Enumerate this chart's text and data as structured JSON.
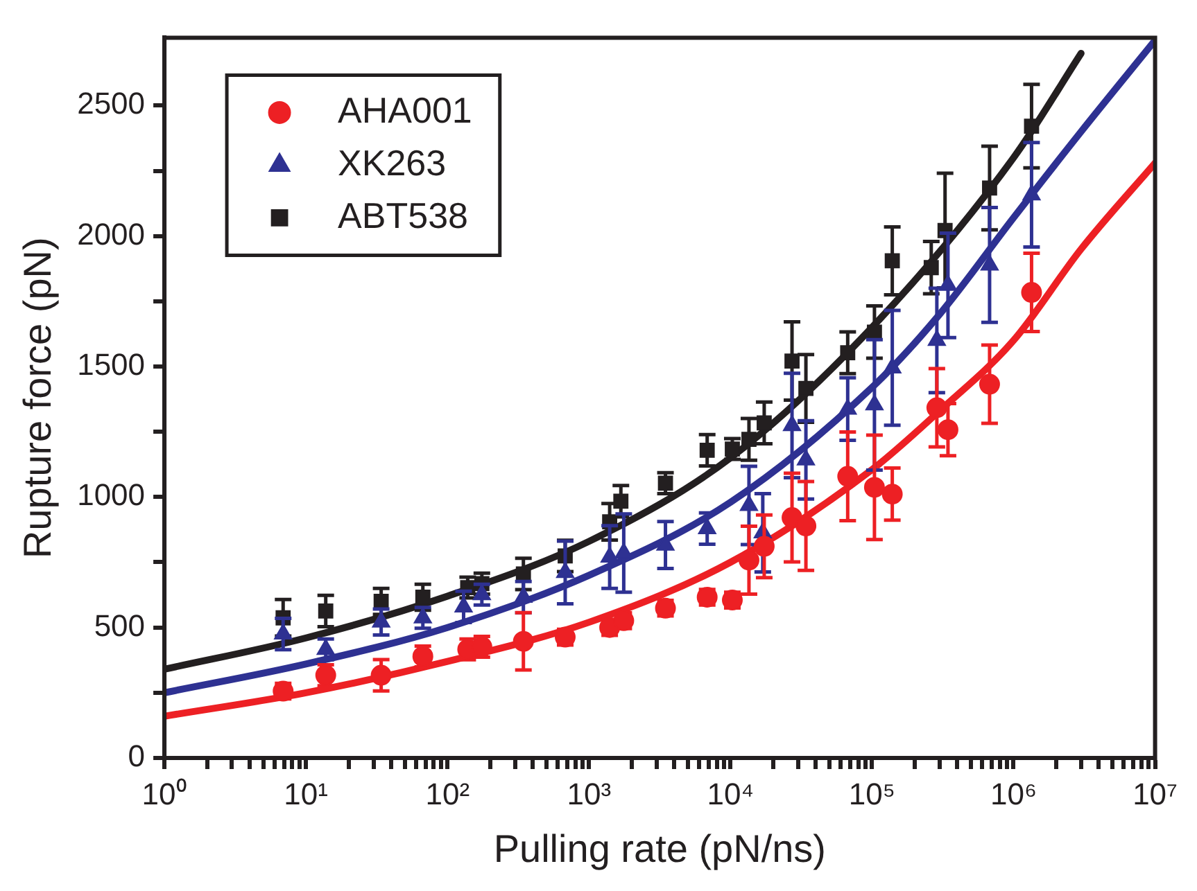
{
  "chart_data": {
    "type": "scatter",
    "xlabel": "Pulling rate (pN/ns)",
    "ylabel": "Rupture force (pN)",
    "log": "x",
    "grid": false,
    "legend": "top left",
    "xlim": [
      1,
      10000000
    ],
    "ylim": [
      0,
      2760
    ],
    "xticks": [
      {
        "value": 1,
        "label": "10⁰"
      },
      {
        "value": 2,
        "label": null
      },
      {
        "value": 3,
        "label": null
      },
      {
        "value": 4,
        "label": null
      },
      {
        "value": 5,
        "label": null
      },
      {
        "value": 6,
        "label": null
      },
      {
        "value": 7,
        "label": null
      },
      {
        "value": 8,
        "label": null
      },
      {
        "value": 9,
        "label": null
      },
      {
        "value": 10,
        "label": "10¹"
      },
      {
        "value": 20,
        "label": null
      },
      {
        "value": 30,
        "label": null
      },
      {
        "value": 40,
        "label": null
      },
      {
        "value": 50,
        "label": null
      },
      {
        "value": 60,
        "label": null
      },
      {
        "value": 70,
        "label": null
      },
      {
        "value": 80,
        "label": null
      },
      {
        "value": 90,
        "label": null
      },
      {
        "value": 100,
        "label": "10²"
      },
      {
        "value": 200,
        "label": null
      },
      {
        "value": 300,
        "label": null
      },
      {
        "value": 400,
        "label": null
      },
      {
        "value": 500,
        "label": null
      },
      {
        "value": 600,
        "label": null
      },
      {
        "value": 700,
        "label": null
      },
      {
        "value": 800,
        "label": null
      },
      {
        "value": 900,
        "label": null
      },
      {
        "value": 1000,
        "label": "10³"
      },
      {
        "value": 2000,
        "label": null
      },
      {
        "value": 3000,
        "label": null
      },
      {
        "value": 4000,
        "label": null
      },
      {
        "value": 5000,
        "label": null
      },
      {
        "value": 6000,
        "label": null
      },
      {
        "value": 7000,
        "label": null
      },
      {
        "value": 8000,
        "label": null
      },
      {
        "value": 9000,
        "label": null
      },
      {
        "value": 10000,
        "label": "10⁴"
      },
      {
        "value": 20000,
        "label": null
      },
      {
        "value": 30000,
        "label": null
      },
      {
        "value": 40000,
        "label": null
      },
      {
        "value": 50000,
        "label": null
      },
      {
        "value": 60000,
        "label": null
      },
      {
        "value": 70000,
        "label": null
      },
      {
        "value": 80000,
        "label": null
      },
      {
        "value": 90000,
        "label": null
      },
      {
        "value": 100000,
        "label": "10⁵"
      },
      {
        "value": 200000,
        "label": null
      },
      {
        "value": 300000,
        "label": null
      },
      {
        "value": 400000,
        "label": null
      },
      {
        "value": 500000,
        "label": null
      },
      {
        "value": 600000,
        "label": null
      },
      {
        "value": 700000,
        "label": null
      },
      {
        "value": 800000,
        "label": null
      },
      {
        "value": 900000,
        "label": null
      },
      {
        "value": 1000000,
        "label": "10⁶"
      },
      {
        "value": 2000000,
        "label": null
      },
      {
        "value": 3000000,
        "label": null
      },
      {
        "value": 4000000,
        "label": null
      },
      {
        "value": 5000000,
        "label": null
      },
      {
        "value": 6000000,
        "label": null
      },
      {
        "value": 7000000,
        "label": null
      },
      {
        "value": 8000000,
        "label": null
      },
      {
        "value": 9000000,
        "label": null
      },
      {
        "value": 10000000,
        "label": "10⁷"
      }
    ],
    "yticks": [
      0,
      {
        "value": 250,
        "label": null
      },
      500,
      {
        "value": 750,
        "label": null
      },
      1000,
      {
        "value": 1250,
        "label": null
      },
      1500,
      {
        "value": 1750,
        "label": null
      },
      2000,
      {
        "value": 2250,
        "label": null
      },
      2500
    ],
    "series": [
      {
        "name": "AHA001",
        "type": "scatter",
        "marker": "circle",
        "color": "#ed2024",
        "x": [
          6.9,
          13.8,
          34,
          67,
          139,
          175,
          344,
          679,
          1400,
          1760,
          3470,
          6840,
          10300,
          13500,
          17300,
          27200,
          34100,
          67300,
          104000,
          139000,
          287000,
          344000,
          677000,
          1340000
        ],
        "values": [
          256,
          317,
          317,
          389,
          416,
          426,
          447,
          463,
          500,
          526,
          574,
          616,
          605,
          758,
          811,
          921,
          889,
          1079,
          1037,
          1011,
          1342,
          1258,
          1432,
          1784
        ],
        "errors": [
          30,
          40,
          60,
          40,
          40,
          40,
          110,
          30,
          30,
          30,
          30,
          30,
          30,
          130,
          120,
          170,
          170,
          170,
          200,
          100,
          150,
          100,
          150,
          150
        ]
      },
      {
        "name": "XK263",
        "type": "scatter",
        "marker": "triangle",
        "color": "#2e3192",
        "x": [
          6.9,
          13.8,
          34,
          67,
          130,
          175,
          344,
          679,
          1400,
          1760,
          3470,
          6840,
          13500,
          16900,
          27200,
          34100,
          67300,
          104000,
          139000,
          287000,
          344000,
          677000,
          1340000
        ],
        "values": [
          475,
          416,
          521,
          537,
          579,
          626,
          616,
          711,
          770,
          785,
          816,
          879,
          968,
          863,
          1274,
          1142,
          1337,
          1353,
          1495,
          1600,
          1811,
          1889,
          2158
        ],
        "errors": [
          60,
          40,
          50,
          40,
          60,
          40,
          60,
          120,
          120,
          150,
          90,
          60,
          150,
          150,
          200,
          150,
          120,
          250,
          220,
          200,
          200,
          220,
          200
        ]
      },
      {
        "name": "ABT538",
        "type": "scatter",
        "marker": "square",
        "color": "#231f20",
        "x": [
          6.9,
          13.8,
          34,
          67,
          139,
          175,
          344,
          679,
          1400,
          1680,
          3470,
          6840,
          10300,
          13500,
          17300,
          27200,
          34100,
          67300,
          104000,
          139000,
          262000,
          328000,
          677000,
          1340000
        ],
        "values": [
          537,
          563,
          600,
          616,
          653,
          668,
          705,
          774,
          905,
          984,
          1053,
          1179,
          1184,
          1221,
          1284,
          1521,
          1416,
          1553,
          1632,
          1905,
          1879,
          2021,
          2184,
          2421
        ],
        "errors": [
          70,
          60,
          50,
          50,
          40,
          40,
          60,
          60,
          70,
          60,
          40,
          60,
          40,
          80,
          80,
          150,
          130,
          80,
          100,
          130,
          100,
          220,
          160,
          160
        ]
      },
      {
        "type": "line",
        "marker": "none",
        "line_style": "solid",
        "color": "#ed2024",
        "x": [
          1,
          10,
          100,
          1000,
          10000,
          100000,
          300000,
          1000000,
          3000000,
          10000000
        ],
        "values": [
          160,
          250,
          370,
          520,
          750,
          1105,
          1330,
          1600,
          1950,
          2280
        ]
      },
      {
        "type": "line",
        "marker": "none",
        "line_style": "solid",
        "color": "#2e3192",
        "x": [
          1,
          10,
          100,
          1000,
          10000,
          100000,
          300000,
          1000000,
          3000000,
          10000000
        ],
        "values": [
          250,
          360,
          500,
          700,
          980,
          1420,
          1700,
          2070,
          2400,
          2750
        ]
      },
      {
        "type": "line",
        "marker": "none",
        "line_style": "solid",
        "color": "#231f20",
        "x": [
          1,
          10,
          100,
          1000,
          10000,
          100000,
          1000000,
          3000000
        ],
        "values": [
          340,
          460,
          620,
          830,
          1150,
          1650,
          2300,
          2700
        ]
      }
    ]
  }
}
